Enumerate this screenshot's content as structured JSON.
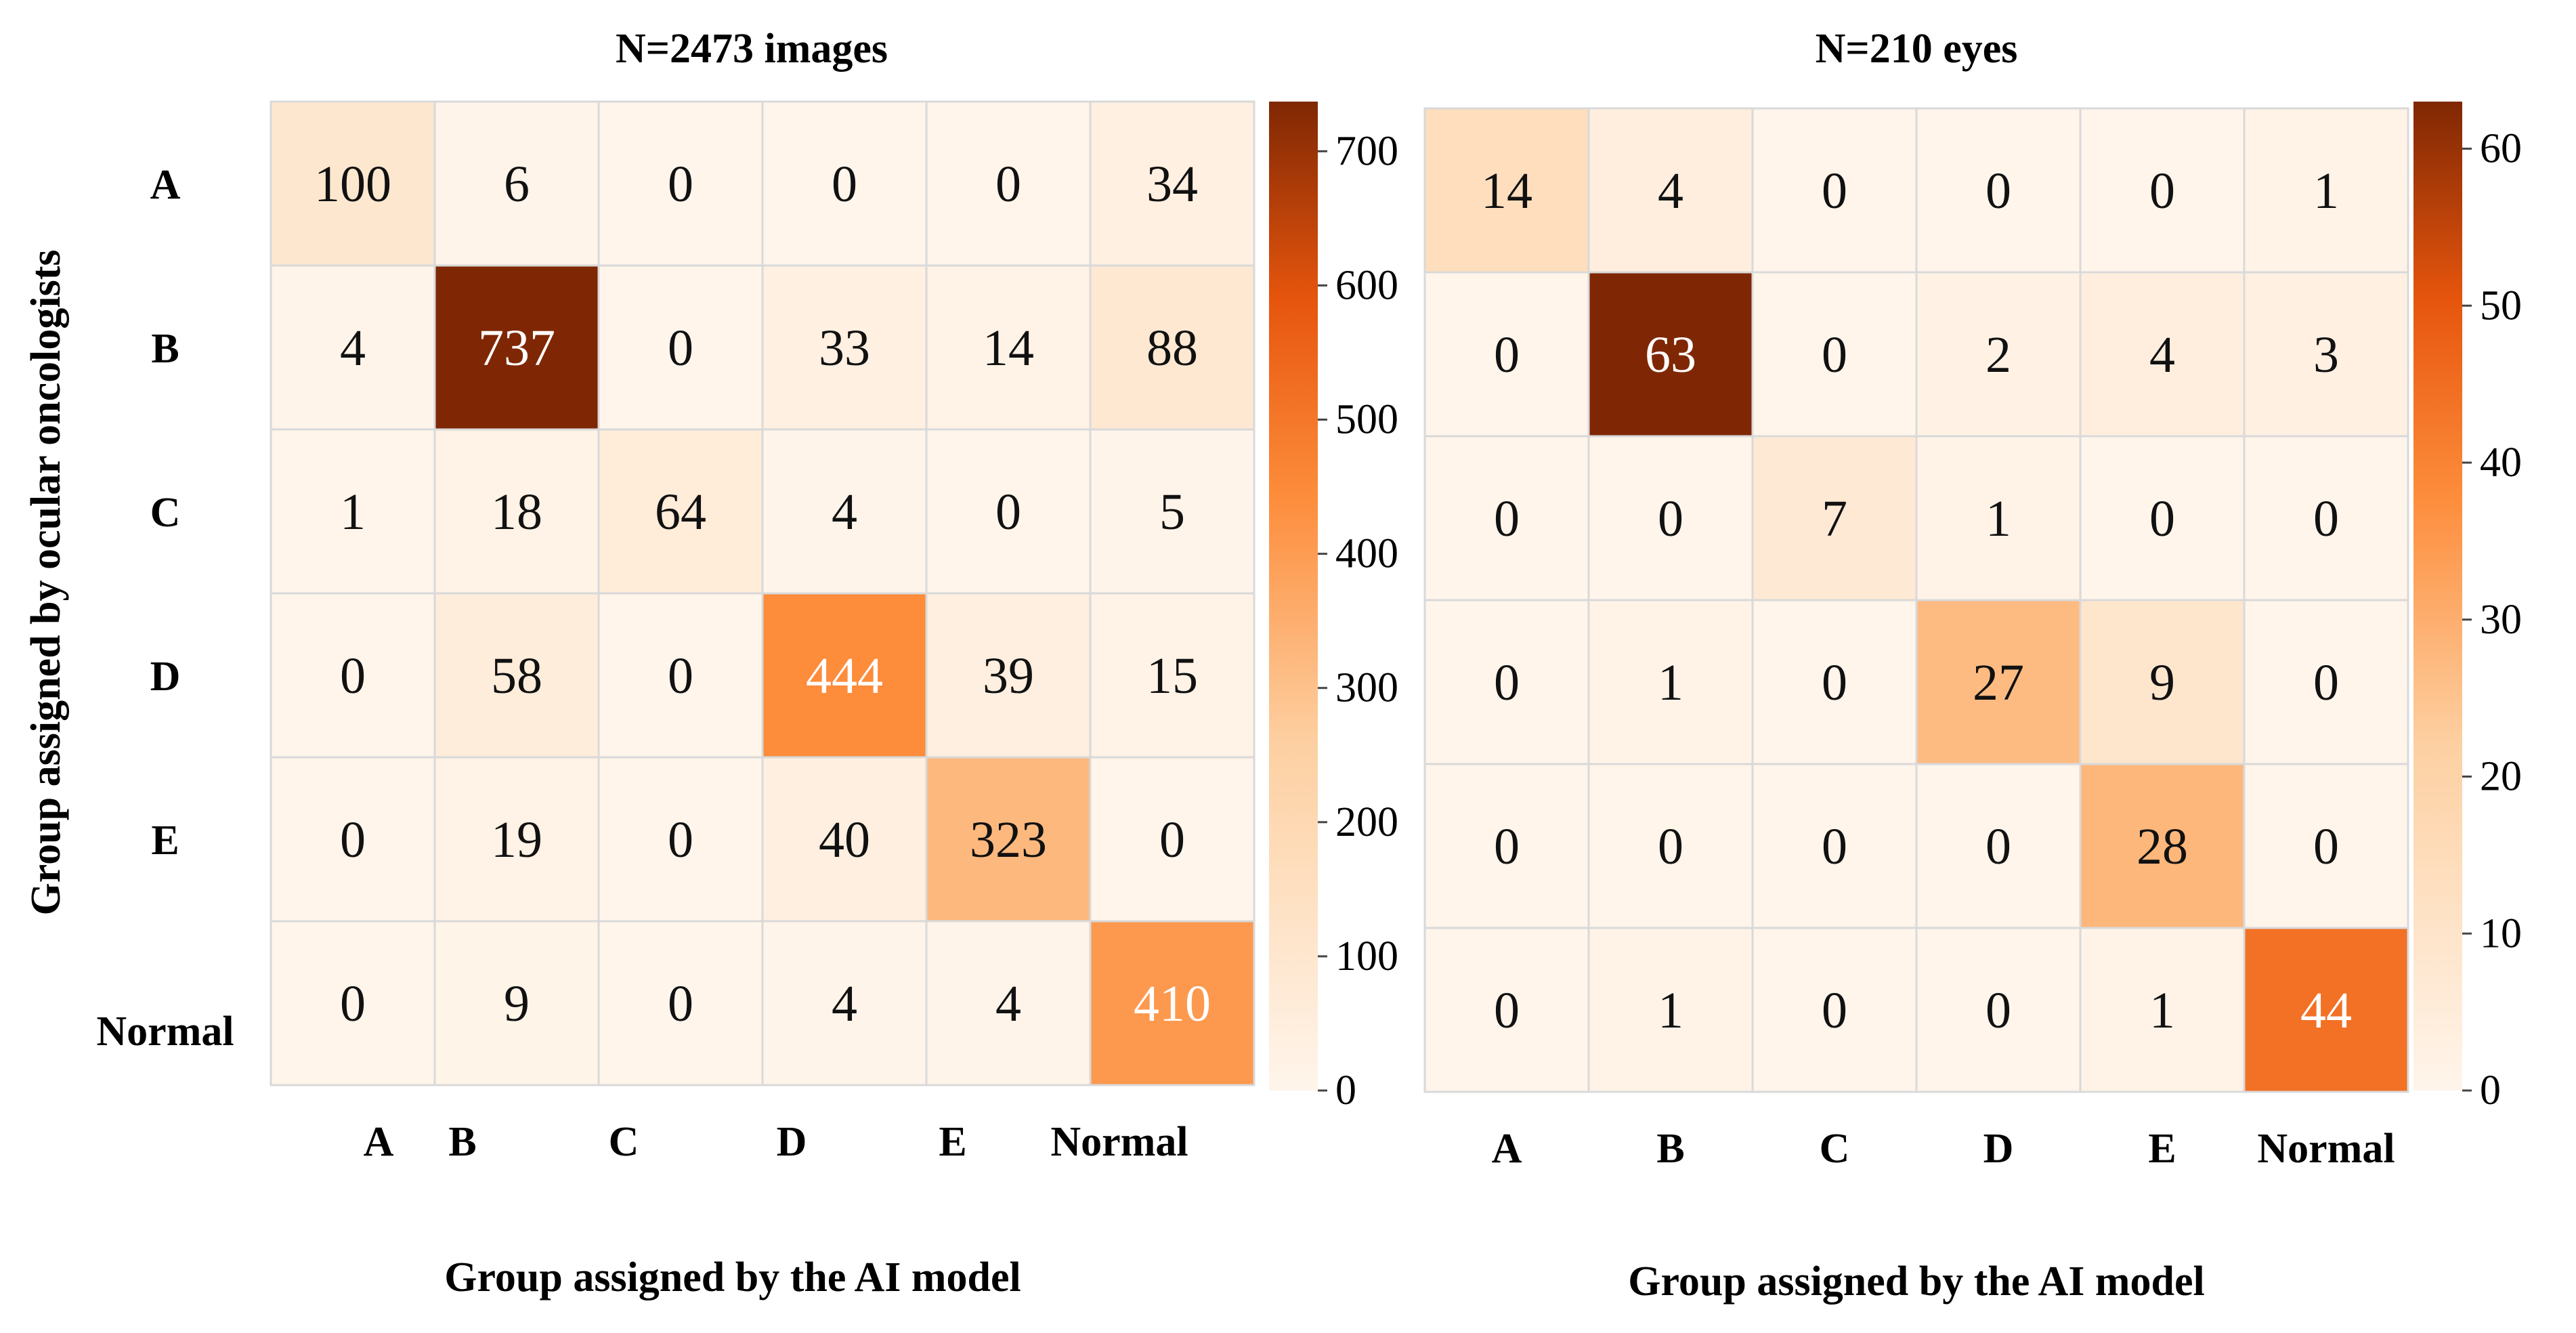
{
  "chart_data": [
    {
      "type": "heatmap",
      "title": "N=2473 images",
      "xlabel": "Group assigned by the AI model",
      "ylabel": "Group assigned by ocular oncologists",
      "row_labels": [
        "A",
        "B",
        "C",
        "D",
        "E",
        "Normal"
      ],
      "col_labels": [
        "A",
        "B",
        "C",
        "D",
        "E",
        "Normal"
      ],
      "values": [
        [
          100,
          6,
          0,
          0,
          0,
          34
        ],
        [
          4,
          737,
          0,
          33,
          14,
          88
        ],
        [
          1,
          18,
          64,
          4,
          0,
          5
        ],
        [
          0,
          58,
          0,
          444,
          39,
          15
        ],
        [
          0,
          19,
          0,
          40,
          323,
          0
        ],
        [
          0,
          9,
          0,
          4,
          4,
          410
        ]
      ],
      "colorbar": {
        "min": 0,
        "max": 737,
        "ticks": [
          0,
          100,
          200,
          300,
          400,
          500,
          600,
          700
        ],
        "colormap": "Oranges"
      }
    },
    {
      "type": "heatmap",
      "title": "N=210 eyes",
      "xlabel": "Group assigned by the AI model",
      "ylabel": "",
      "row_labels": [],
      "col_labels": [
        "A",
        "B",
        "C",
        "D",
        "E",
        "Normal"
      ],
      "values": [
        [
          14,
          4,
          0,
          0,
          0,
          1
        ],
        [
          0,
          63,
          0,
          2,
          4,
          3
        ],
        [
          0,
          0,
          7,
          1,
          0,
          0
        ],
        [
          0,
          1,
          0,
          27,
          9,
          0
        ],
        [
          0,
          0,
          0,
          0,
          28,
          0
        ],
        [
          0,
          1,
          0,
          0,
          1,
          44
        ]
      ],
      "colorbar": {
        "min": 0,
        "max": 63,
        "ticks": [
          0,
          10,
          20,
          30,
          40,
          50,
          60
        ],
        "colormap": "Oranges"
      }
    }
  ],
  "colors": {
    "low": "#fff5eb",
    "mid1": "#fdd0a2",
    "mid2": "#fd8d3c",
    "mid3": "#e6550d",
    "high": "#7f2704",
    "grid": "#d9d9d9"
  }
}
